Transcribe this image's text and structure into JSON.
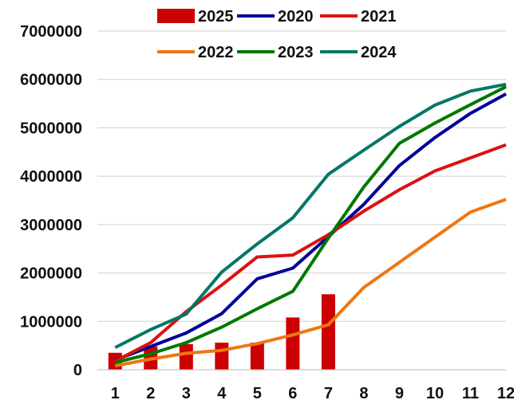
{
  "chart_data": {
    "type": "bar",
    "categories": [
      "1",
      "2",
      "3",
      "4",
      "5",
      "6",
      "7",
      "8",
      "9",
      "10",
      "11",
      "12"
    ],
    "ylim": [
      0,
      7000000
    ],
    "yticks": [
      "0",
      "1000000",
      "2000000",
      "3000000",
      "4000000",
      "5000000",
      "6000000",
      "7000000"
    ],
    "grid": true,
    "legend_position": "top",
    "bar_series": {
      "name": "2025",
      "color": "#cc0000",
      "values": [
        350000,
        480000,
        530000,
        560000,
        560000,
        1080000,
        1560000
      ]
    },
    "line_series": [
      {
        "name": "2020",
        "color": "#000099",
        "values": [
          200000,
          480000,
          760000,
          1160000,
          1880000,
          2100000,
          2750000,
          3420000,
          4220000,
          4800000,
          5300000,
          5700000
        ]
      },
      {
        "name": "2021",
        "color": "#dd1111",
        "values": [
          180000,
          560000,
          1200000,
          1750000,
          2330000,
          2370000,
          2790000,
          3280000,
          3720000,
          4110000,
          4380000,
          4650000
        ]
      },
      {
        "name": "2022",
        "color": "#ee7711",
        "values": [
          80000,
          220000,
          340000,
          400000,
          540000,
          720000,
          930000,
          1700000,
          2220000,
          2740000,
          3260000,
          3520000
        ]
      },
      {
        "name": "2023",
        "color": "#007700",
        "values": [
          150000,
          330000,
          560000,
          880000,
          1260000,
          1620000,
          2720000,
          3780000,
          4680000,
          5100000,
          5480000,
          5850000
        ]
      },
      {
        "name": "2024",
        "color": "#007766",
        "values": [
          460000,
          830000,
          1150000,
          2020000,
          2600000,
          3140000,
          4040000,
          4540000,
          5030000,
          5470000,
          5760000,
          5900000
        ]
      }
    ],
    "legend": [
      "2025",
      "2020",
      "2021",
      "2022",
      "2023",
      "2024"
    ]
  }
}
